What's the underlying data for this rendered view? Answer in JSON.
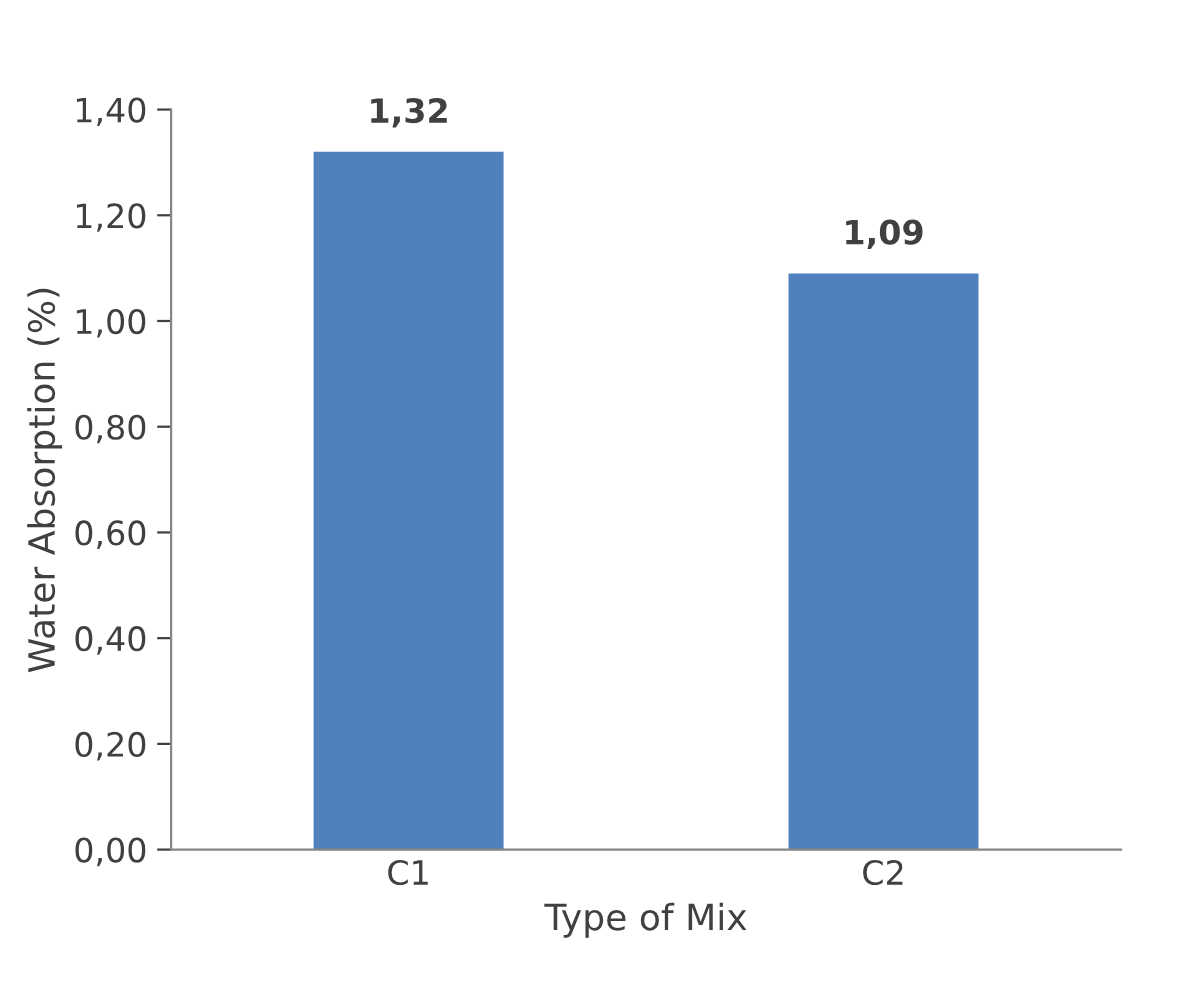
{
  "chart_data": {
    "type": "bar",
    "xlabel": "Type of Mix",
    "ylabel": "Water Absorption (%)",
    "categories": [
      "C1",
      "C2"
    ],
    "values": [
      1.32,
      1.09
    ],
    "color": "#4f81bd",
    "value_labels": [
      "1,32",
      "1,09"
    ],
    "ylim": [
      0,
      1.4
    ],
    "yticks": [
      {
        "value": 0,
        "label": "0,00"
      },
      {
        "value": 0.2,
        "label": "0,20"
      },
      {
        "value": 0.4,
        "label": "0,40"
      },
      {
        "value": 0.6,
        "label": "0,60"
      },
      {
        "value": 0.8,
        "label": "0,80"
      },
      {
        "value": 1.0,
        "label": "1,00"
      },
      {
        "value": 1.2,
        "label": "1,20"
      },
      {
        "value": 1.4,
        "label": "1,40"
      }
    ],
    "grid": false,
    "legend": false
  }
}
